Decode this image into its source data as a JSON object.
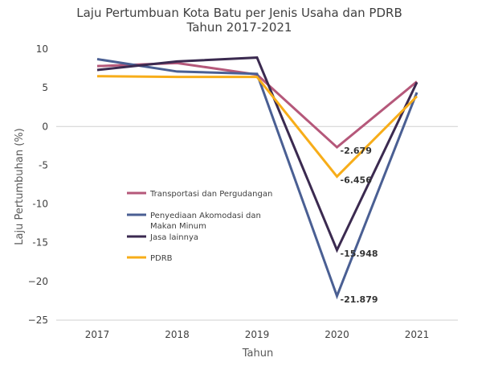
{
  "chart_data": {
    "type": "line",
    "title_line1": "Laju Pertumbuan Kota Batu per Jenis Usaha dan PDRB",
    "title_line2": "Tahun 2017-2021",
    "xlabel": "Tahun",
    "ylabel": "Laju Pertumbuhan (%)",
    "categories": [
      "2017",
      "2018",
      "2019",
      "2020",
      "2021"
    ],
    "ylim": [
      -25,
      10
    ],
    "yticks": [
      10,
      5,
      0,
      -5,
      -10,
      -15,
      -20,
      -25
    ],
    "ytick_labels": [
      "10",
      "5",
      "0",
      "-5",
      "-10",
      "-15",
      "−20",
      "−25"
    ],
    "grid": false,
    "legend_position": "inside-left-middle",
    "series": [
      {
        "name": "Transportasi dan Pergudangan",
        "color": "#b5587a",
        "values": [
          7.8,
          8.2,
          6.7,
          -2.679,
          5.8
        ]
      },
      {
        "name": "Penyediaan Akomodasi dan Makan Minum",
        "color": "#4a5f93",
        "values": [
          8.7,
          7.1,
          6.8,
          -21.879,
          4.4
        ]
      },
      {
        "name": "Jasa lainnya",
        "color": "#3b2a50",
        "values": [
          7.3,
          8.4,
          8.9,
          -15.948,
          5.7
        ]
      },
      {
        "name": "PDRB",
        "color": "#f7ad19",
        "values": [
          6.5,
          6.4,
          6.4,
          -6.456,
          3.9
        ]
      }
    ],
    "data_labels": [
      {
        "series": 0,
        "index": 3,
        "text": "-2.679"
      },
      {
        "series": 3,
        "index": 3,
        "text": "-6.456"
      },
      {
        "series": 2,
        "index": 3,
        "text": "-15.948"
      },
      {
        "series": 1,
        "index": 3,
        "text": "-21.879"
      }
    ]
  }
}
